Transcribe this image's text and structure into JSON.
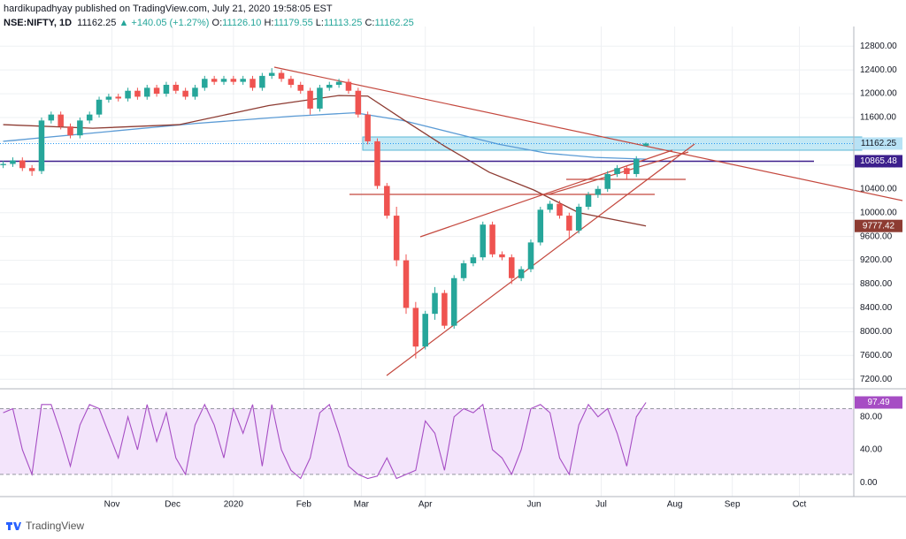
{
  "header": {
    "author_line": "hardikupadhyay published on TradingView.com, July 21, 2020 19:58:05 EST",
    "symbol": "NSE:NIFTY, 1D",
    "last": "11162.25",
    "change": "▲ +140.05 (+1.27%)",
    "ohlc": [
      {
        "label": "O:",
        "value": "11126.10"
      },
      {
        "label": "H:",
        "value": "11179.55"
      },
      {
        "label": "L:",
        "value": "11113.25"
      },
      {
        "label": "C:",
        "value": "11162.25"
      }
    ]
  },
  "footer": {
    "brand": "TradingView"
  },
  "chart_data": [
    {
      "type": "candlestick",
      "x": [
        0,
        3,
        6,
        9,
        12,
        15,
        18,
        21,
        24,
        27,
        30,
        33,
        36,
        39,
        42,
        45,
        48,
        51,
        54,
        57,
        60,
        63,
        66,
        69,
        72,
        75,
        78,
        81,
        84,
        87,
        90,
        93,
        96,
        99,
        102,
        105,
        108,
        111,
        114,
        117,
        120,
        123,
        126,
        129,
        132,
        135,
        138,
        141,
        144,
        147,
        150,
        153,
        156,
        159,
        162,
        165,
        168,
        171,
        174,
        177,
        180,
        183,
        186,
        189,
        192,
        195,
        198,
        201
      ],
      "open": [
        10800,
        10820,
        10880,
        10750,
        10700,
        11550,
        11650,
        11450,
        11300,
        11550,
        11650,
        11900,
        11950,
        11920,
        12050,
        11950,
        12100,
        12000,
        12150,
        12050,
        11950,
        12100,
        12250,
        12200,
        12250,
        12200,
        12250,
        12100,
        12300,
        12350,
        12250,
        12150,
        12050,
        11750,
        12100,
        12150,
        12200,
        12050,
        11650,
        11200,
        10450,
        9950,
        9200,
        8400,
        7750,
        8300,
        8650,
        8100,
        8900,
        9150,
        9250,
        9800,
        9300,
        9250,
        8900,
        9050,
        9500,
        10050,
        10150,
        9950,
        9700,
        10100,
        10300,
        10400,
        10650,
        10750,
        10650,
        11126.1
      ],
      "high": [
        10870,
        10930,
        10930,
        10800,
        11600,
        11700,
        11700,
        11500,
        11600,
        11700,
        11950,
        12000,
        12000,
        12100,
        12100,
        12150,
        12150,
        12200,
        12200,
        12100,
        12150,
        12300,
        12300,
        12300,
        12300,
        12300,
        12300,
        12350,
        12430,
        12400,
        12300,
        12200,
        12100,
        12150,
        12200,
        12250,
        12250,
        12100,
        11700,
        11250,
        10500,
        10100,
        9300,
        8500,
        8350,
        8750,
        8700,
        8950,
        9200,
        9300,
        9850,
        9850,
        9350,
        9300,
        9100,
        9550,
        10100,
        10200,
        10200,
        10000,
        10150,
        10350,
        10450,
        10700,
        10800,
        10800,
        10950,
        11179.55
      ],
      "low": [
        10750,
        10770,
        10700,
        10620,
        10650,
        11500,
        11400,
        11250,
        11250,
        11500,
        11600,
        11850,
        11870,
        11870,
        11900,
        11900,
        11950,
        11950,
        12000,
        11900,
        11900,
        12050,
        12150,
        12150,
        12150,
        12150,
        12050,
        12050,
        12250,
        12200,
        12100,
        12000,
        11650,
        11700,
        12050,
        12100,
        12000,
        11600,
        11150,
        10400,
        9900,
        9100,
        8300,
        7550,
        7700,
        8200,
        8050,
        8050,
        8850,
        9100,
        9200,
        9250,
        9200,
        8800,
        8850,
        9000,
        9450,
        10000,
        9900,
        9550,
        9650,
        10050,
        10250,
        10350,
        10600,
        10550,
        10600,
        11113.25
      ],
      "close": [
        10820,
        10880,
        10750,
        10700,
        11550,
        11650,
        11450,
        11300,
        11550,
        11650,
        11900,
        11950,
        11920,
        12050,
        11950,
        12100,
        12000,
        12150,
        12050,
        11950,
        12100,
        12250,
        12200,
        12250,
        12200,
        12250,
        12100,
        12300,
        12350,
        12250,
        12150,
        12050,
        11750,
        12100,
        12150,
        12200,
        12050,
        11650,
        11200,
        10450,
        9950,
        9200,
        8400,
        7750,
        8300,
        8650,
        8100,
        8900,
        9150,
        9250,
        9800,
        9300,
        9250,
        8900,
        9050,
        9500,
        10050,
        10150,
        9950,
        9700,
        10100,
        10300,
        10400,
        10650,
        10750,
        10650,
        10900,
        11162.25
      ],
      "up_color": "#26a69a",
      "down_color": "#ef5350",
      "last_price_color": "#b8e2f5",
      "ma_lines": [
        {
          "color": "#5b9bd5",
          "x": [
            0,
            30,
            60,
            90,
            110,
            125,
            140,
            155,
            170,
            185,
            201
          ],
          "values": [
            11200,
            11350,
            11500,
            11620,
            11680,
            11550,
            11350,
            11150,
            11000,
            10930,
            10900
          ]
        },
        {
          "color": "#8d3b32",
          "x": [
            0,
            28,
            55,
            83,
            105,
            114,
            125,
            138,
            152,
            166,
            180,
            201
          ],
          "values": [
            11480,
            11420,
            11480,
            11800,
            11970,
            11960,
            11570,
            11120,
            10680,
            10380,
            10000,
            9777.42
          ]
        }
      ],
      "levels": [
        {
          "value": 10865.48,
          "color": "#3c1f8c"
        }
      ],
      "xlim": [
        -1,
        266
      ],
      "ylim": [
        7040,
        13130
      ],
      "xticks": [
        {
          "value": 34,
          "label": "Nov"
        },
        {
          "value": 53,
          "label": "Dec"
        },
        {
          "value": 72,
          "label": "2020"
        },
        {
          "value": 94,
          "label": "Feb"
        },
        {
          "value": 112,
          "label": "Mar"
        },
        {
          "value": 132,
          "label": "Apr"
        },
        {
          "value": 166,
          "label": "Jun"
        },
        {
          "value": 187,
          "label": "Jul"
        },
        {
          "value": 210,
          "label": "Aug"
        },
        {
          "value": 228,
          "label": "Sep"
        },
        {
          "value": 249,
          "label": "Oct"
        }
      ],
      "yticks": [
        {
          "value": 7200,
          "label": "7200.00"
        },
        {
          "value": 7600,
          "label": "7600.00"
        },
        {
          "value": 8000,
          "label": "8000.00"
        },
        {
          "value": 8400,
          "label": "8400.00"
        },
        {
          "value": 8800,
          "label": "8800.00"
        },
        {
          "value": 9200,
          "label": "9200.00"
        },
        {
          "value": 9600,
          "label": "9600.00"
        },
        {
          "value": 10000,
          "label": "10000.00"
        },
        {
          "value": 10400,
          "label": "10400.00"
        },
        {
          "value": 10800,
          "label": "10800.00"
        },
        {
          "value": 11200,
          "label": "11200.00"
        },
        {
          "value": 11600,
          "label": "11600.00"
        },
        {
          "value": 12000,
          "label": "12000.00"
        },
        {
          "value": 12400,
          "label": "12400.00"
        },
        {
          "value": 12800,
          "label": "12800.00"
        }
      ],
      "grid": true
    },
    {
      "type": "line",
      "color": "#a64dc4",
      "fill": "#f3e4fb",
      "x": [
        0,
        3,
        6,
        9,
        12,
        15,
        18,
        21,
        24,
        27,
        30,
        33,
        36,
        39,
        42,
        45,
        48,
        51,
        54,
        57,
        60,
        63,
        66,
        69,
        72,
        75,
        78,
        81,
        84,
        87,
        90,
        93,
        96,
        99,
        102,
        105,
        108,
        111,
        114,
        117,
        120,
        123,
        126,
        129,
        132,
        135,
        138,
        141,
        144,
        147,
        150,
        153,
        156,
        159,
        162,
        165,
        168,
        171,
        174,
        177,
        180,
        183,
        186,
        189,
        192,
        195,
        198,
        201
      ],
      "values": [
        85,
        90,
        40,
        10,
        95,
        95,
        60,
        20,
        70,
        95,
        90,
        60,
        30,
        80,
        40,
        95,
        50,
        85,
        30,
        10,
        70,
        95,
        70,
        30,
        90,
        60,
        95,
        20,
        95,
        40,
        15,
        5,
        30,
        85,
        95,
        60,
        20,
        10,
        5,
        8,
        30,
        5,
        10,
        15,
        75,
        60,
        15,
        80,
        90,
        85,
        95,
        40,
        30,
        10,
        40,
        90,
        95,
        85,
        30,
        10,
        70,
        95,
        80,
        90,
        60,
        20,
        80,
        97.49
      ],
      "bands": [
        10,
        90
      ],
      "ylim": [
        -17,
        112
      ],
      "yticks": [
        {
          "value": 0,
          "label": "0.00"
        },
        {
          "value": 40,
          "label": "40.00"
        },
        {
          "value": 80,
          "label": "80.00"
        }
      ]
    }
  ]
}
